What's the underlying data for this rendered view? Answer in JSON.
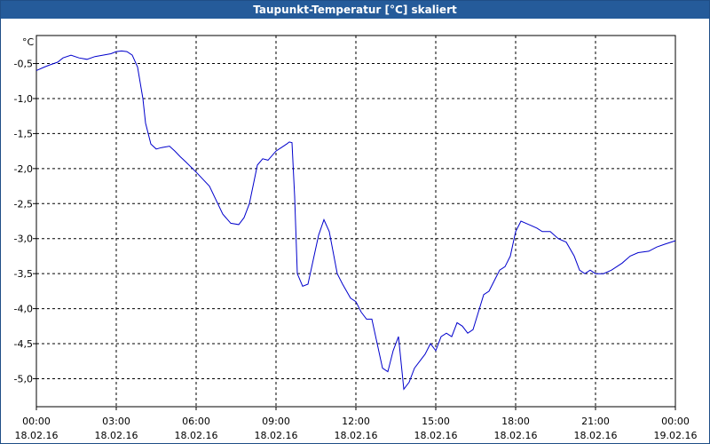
{
  "window": {
    "title": "Taupunkt-Temperatur [°C] skaliert"
  },
  "chart_data": {
    "type": "line",
    "title": "Taupunkt-Temperatur [°C] skaliert",
    "ylabel": "°C",
    "xlabel": "",
    "x_unit": "hours since 18.02.16 00:00",
    "xlim": [
      0,
      24
    ],
    "ylim": [
      -5.4,
      -0.1
    ],
    "grid": true,
    "line_color": "#0000cc",
    "y_ticks": [
      "-0,5",
      "-1,0",
      "-1,5",
      "-2,0",
      "-2,5",
      "-3,0",
      "-3,5",
      "-4,0",
      "-4,5",
      "-5,0"
    ],
    "y_tick_values": [
      -0.5,
      -1.0,
      -1.5,
      -2.0,
      -2.5,
      -3.0,
      -3.5,
      -4.0,
      -4.5,
      -5.0
    ],
    "x_ticks": [
      {
        "time": "00:00",
        "date": "18.02.16"
      },
      {
        "time": "03:00",
        "date": "18.02.16"
      },
      {
        "time": "06:00",
        "date": "18.02.16"
      },
      {
        "time": "09:00",
        "date": "18.02.16"
      },
      {
        "time": "12:00",
        "date": "18.02.16"
      },
      {
        "time": "15:00",
        "date": "18.02.16"
      },
      {
        "time": "18:00",
        "date": "18.02.16"
      },
      {
        "time": "21:00",
        "date": "18.02.16"
      },
      {
        "time": "00:00",
        "date": "19.02.16"
      }
    ],
    "x_tick_values": [
      0,
      3,
      6,
      9,
      12,
      15,
      18,
      21,
      24
    ],
    "series": [
      {
        "x": [
          0,
          0.3,
          0.5,
          0.8,
          1.0,
          1.3,
          1.6,
          1.9,
          2.2,
          2.5,
          2.8,
          3.0,
          3.2,
          3.4,
          3.6,
          3.8,
          4.0,
          4.1,
          4.3,
          4.5,
          4.7,
          5.0,
          5.2,
          5.4,
          5.6,
          6.0,
          6.5,
          7.0,
          7.3,
          7.6,
          7.8,
          8.0,
          8.3,
          8.5,
          8.7,
          9.0,
          9.2,
          9.4,
          9.5,
          9.6,
          9.7,
          9.8,
          10.0,
          10.2,
          10.4,
          10.6,
          10.8,
          11.0,
          11.3,
          11.5,
          11.8,
          12.0,
          12.2,
          12.4,
          12.6,
          12.8,
          13.0,
          13.2,
          13.4,
          13.6,
          13.8,
          14.0,
          14.2,
          14.4,
          14.6,
          14.8,
          15.0,
          15.2,
          15.4,
          15.6,
          15.8,
          16.0,
          16.2,
          16.4,
          16.6,
          16.8,
          17.0,
          17.2,
          17.4,
          17.6,
          17.8,
          18.0,
          18.2,
          18.5,
          18.8,
          19.0,
          19.3,
          19.6,
          19.9,
          20.2,
          20.4,
          20.6,
          20.8,
          21.0,
          21.3,
          21.6,
          22.0,
          22.3,
          22.6,
          23.0,
          23.3,
          23.6,
          24.0
        ],
        "y": [
          -0.6,
          -0.55,
          -0.52,
          -0.48,
          -0.42,
          -0.38,
          -0.42,
          -0.44,
          -0.4,
          -0.38,
          -0.36,
          -0.33,
          -0.32,
          -0.33,
          -0.38,
          -0.55,
          -1.0,
          -1.35,
          -1.65,
          -1.72,
          -1.7,
          -1.68,
          -1.75,
          -1.83,
          -1.9,
          -2.05,
          -2.25,
          -2.65,
          -2.78,
          -2.8,
          -2.7,
          -2.5,
          -1.95,
          -1.86,
          -1.88,
          -1.75,
          -1.7,
          -1.65,
          -1.62,
          -1.63,
          -2.4,
          -3.5,
          -3.68,
          -3.65,
          -3.3,
          -2.95,
          -2.73,
          -2.9,
          -3.5,
          -3.65,
          -3.85,
          -3.9,
          -4.05,
          -4.15,
          -4.15,
          -4.5,
          -4.85,
          -4.9,
          -4.6,
          -4.4,
          -5.15,
          -5.05,
          -4.85,
          -4.75,
          -4.65,
          -4.5,
          -4.6,
          -4.4,
          -4.35,
          -4.4,
          -4.2,
          -4.25,
          -4.35,
          -4.3,
          -4.05,
          -3.8,
          -3.75,
          -3.6,
          -3.45,
          -3.4,
          -3.25,
          -2.9,
          -2.75,
          -2.8,
          -2.85,
          -2.9,
          -2.9,
          -3.0,
          -3.05,
          -3.25,
          -3.45,
          -3.5,
          -3.45,
          -3.5,
          -3.5,
          -3.45,
          -3.35,
          -3.25,
          -3.2,
          -3.18,
          -3.12,
          -3.08,
          -3.03
        ]
      }
    ]
  }
}
